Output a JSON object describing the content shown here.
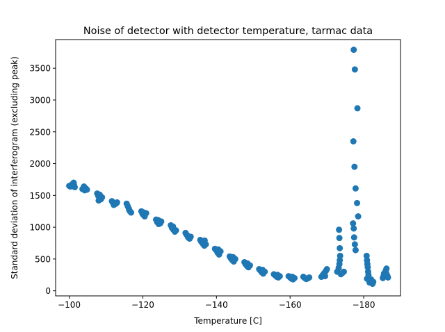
{
  "chart_data": {
    "type": "scatter",
    "title": "Noise of detector with detector temperature, tarmac data",
    "xlabel": "Temperature [C]",
    "ylabel": "Standard deviation of interferogram (excluding peak)",
    "x_axis_inverted": true,
    "xlim": [
      -96.3,
      -190.0
    ],
    "ylim": [
      -80,
      3950
    ],
    "x_ticks": [
      -100,
      -120,
      -140,
      -160,
      -180
    ],
    "x_tick_labels": [
      "−100",
      "−120",
      "−140",
      "−160",
      "−180"
    ],
    "y_ticks": [
      0,
      500,
      1000,
      1500,
      2000,
      2500,
      3000,
      3500
    ],
    "y_tick_labels": [
      "0",
      "500",
      "1000",
      "1500",
      "2000",
      "2500",
      "3000",
      "3500"
    ],
    "grid": false,
    "marker_color": "#1f77b4",
    "series": [
      {
        "points": [
          [
            -100.0,
            1650
          ],
          [
            -100.3,
            1640
          ],
          [
            -100.6,
            1665
          ],
          [
            -100.9,
            1680
          ],
          [
            -101.2,
            1700
          ],
          [
            -101.5,
            1630
          ],
          [
            -101.3,
            1660
          ],
          [
            -103.6,
            1600
          ],
          [
            -103.9,
            1625
          ],
          [
            -104.2,
            1580
          ],
          [
            -104.5,
            1610
          ],
          [
            -104.8,
            1590
          ],
          [
            -104.0,
            1640
          ],
          [
            -107.6,
            1530
          ],
          [
            -107.9,
            1490
          ],
          [
            -108.2,
            1460
          ],
          [
            -108.6,
            1440
          ],
          [
            -108.9,
            1470
          ],
          [
            -108.3,
            1510
          ],
          [
            -108.0,
            1420
          ],
          [
            -111.6,
            1410
          ],
          [
            -111.9,
            1380
          ],
          [
            -112.3,
            1360
          ],
          [
            -112.7,
            1370
          ],
          [
            -113.0,
            1390
          ],
          [
            -112.1,
            1350
          ],
          [
            -115.6,
            1370
          ],
          [
            -115.9,
            1330
          ],
          [
            -116.2,
            1290
          ],
          [
            -116.5,
            1250
          ],
          [
            -116.8,
            1230
          ],
          [
            -116.3,
            1270
          ],
          [
            -119.6,
            1250
          ],
          [
            -119.9,
            1210
          ],
          [
            -120.2,
            1190
          ],
          [
            -120.5,
            1170
          ],
          [
            -120.9,
            1220
          ],
          [
            -120.3,
            1230
          ],
          [
            -123.6,
            1120
          ],
          [
            -123.9,
            1080
          ],
          [
            -124.3,
            1050
          ],
          [
            -124.7,
            1060
          ],
          [
            -125.0,
            1090
          ],
          [
            -124.2,
            1110
          ],
          [
            -127.6,
            1030
          ],
          [
            -127.9,
            990
          ],
          [
            -128.3,
            960
          ],
          [
            -128.7,
            930
          ],
          [
            -129.0,
            950
          ],
          [
            -128.2,
            1010
          ],
          [
            -131.6,
            910
          ],
          [
            -131.9,
            880
          ],
          [
            -132.3,
            840
          ],
          [
            -132.7,
            820
          ],
          [
            -133.0,
            850
          ],
          [
            -132.1,
            870
          ],
          [
            -135.6,
            800
          ],
          [
            -135.9,
            770
          ],
          [
            -136.3,
            740
          ],
          [
            -136.7,
            710
          ],
          [
            -137.1,
            730
          ],
          [
            -136.8,
            790
          ],
          [
            -139.6,
            660
          ],
          [
            -139.9,
            640
          ],
          [
            -140.3,
            600
          ],
          [
            -140.7,
            570
          ],
          [
            -141.1,
            620
          ],
          [
            -140.5,
            650
          ],
          [
            -143.6,
            540
          ],
          [
            -143.9,
            510
          ],
          [
            -144.3,
            480
          ],
          [
            -144.7,
            460
          ],
          [
            -145.1,
            500
          ],
          [
            -144.5,
            530
          ],
          [
            -147.6,
            450
          ],
          [
            -147.9,
            420
          ],
          [
            -148.3,
            390
          ],
          [
            -148.7,
            370
          ],
          [
            -149.1,
            400
          ],
          [
            -148.4,
            430
          ],
          [
            -151.6,
            340
          ],
          [
            -151.9,
            320
          ],
          [
            -152.3,
            290
          ],
          [
            -152.7,
            270
          ],
          [
            -153.1,
            300
          ],
          [
            -152.5,
            330
          ],
          [
            -155.6,
            260
          ],
          [
            -156.0,
            240
          ],
          [
            -156.4,
            220
          ],
          [
            -156.8,
            210
          ],
          [
            -157.2,
            230
          ],
          [
            -156.6,
            250
          ],
          [
            -159.6,
            230
          ],
          [
            -160.0,
            210
          ],
          [
            -160.4,
            190
          ],
          [
            -160.8,
            180
          ],
          [
            -161.2,
            200
          ],
          [
            -160.6,
            220
          ],
          [
            -163.6,
            220
          ],
          [
            -164.0,
            200
          ],
          [
            -164.4,
            185
          ],
          [
            -164.8,
            195
          ],
          [
            -165.2,
            210
          ],
          [
            -168.5,
            220
          ],
          [
            -168.9,
            250
          ],
          [
            -169.3,
            280
          ],
          [
            -169.7,
            310
          ],
          [
            -170.0,
            340
          ],
          [
            -169.5,
            230
          ],
          [
            -172.8,
            300
          ],
          [
            -173.2,
            360
          ],
          [
            -173.4,
            420
          ],
          [
            -173.5,
            480
          ],
          [
            -173.6,
            550
          ],
          [
            -173.5,
            670
          ],
          [
            -173.4,
            830
          ],
          [
            -173.3,
            960
          ],
          [
            -173.8,
            260
          ],
          [
            -174.2,
            280
          ],
          [
            -174.6,
            300
          ],
          [
            -177.3,
            3790
          ],
          [
            -177.6,
            3480
          ],
          [
            -178.3,
            2870
          ],
          [
            -177.2,
            2350
          ],
          [
            -177.5,
            1950
          ],
          [
            -177.8,
            1610
          ],
          [
            -178.2,
            1380
          ],
          [
            -178.5,
            1170
          ],
          [
            -177.1,
            1060
          ],
          [
            -177.3,
            980
          ],
          [
            -177.4,
            840
          ],
          [
            -177.6,
            730
          ],
          [
            -177.8,
            640
          ],
          [
            -180.8,
            550
          ],
          [
            -180.9,
            480
          ],
          [
            -181.0,
            420
          ],
          [
            -181.1,
            370
          ],
          [
            -181.2,
            300
          ],
          [
            -181.3,
            250
          ],
          [
            -181.4,
            200
          ],
          [
            -181.5,
            160
          ],
          [
            -181.6,
            130
          ],
          [
            -181.8,
            150
          ],
          [
            -182.0,
            180
          ],
          [
            -182.2,
            130
          ],
          [
            -182.4,
            110
          ],
          [
            -182.6,
            140
          ],
          [
            -180.9,
            190
          ],
          [
            -185.2,
            200
          ],
          [
            -185.4,
            230
          ],
          [
            -185.6,
            260
          ],
          [
            -185.8,
            290
          ],
          [
            -186.0,
            320
          ],
          [
            -186.2,
            350
          ],
          [
            -186.4,
            240
          ],
          [
            -186.6,
            210
          ],
          [
            -185.5,
            270
          ],
          [
            -186.1,
            280
          ]
        ]
      }
    ]
  }
}
